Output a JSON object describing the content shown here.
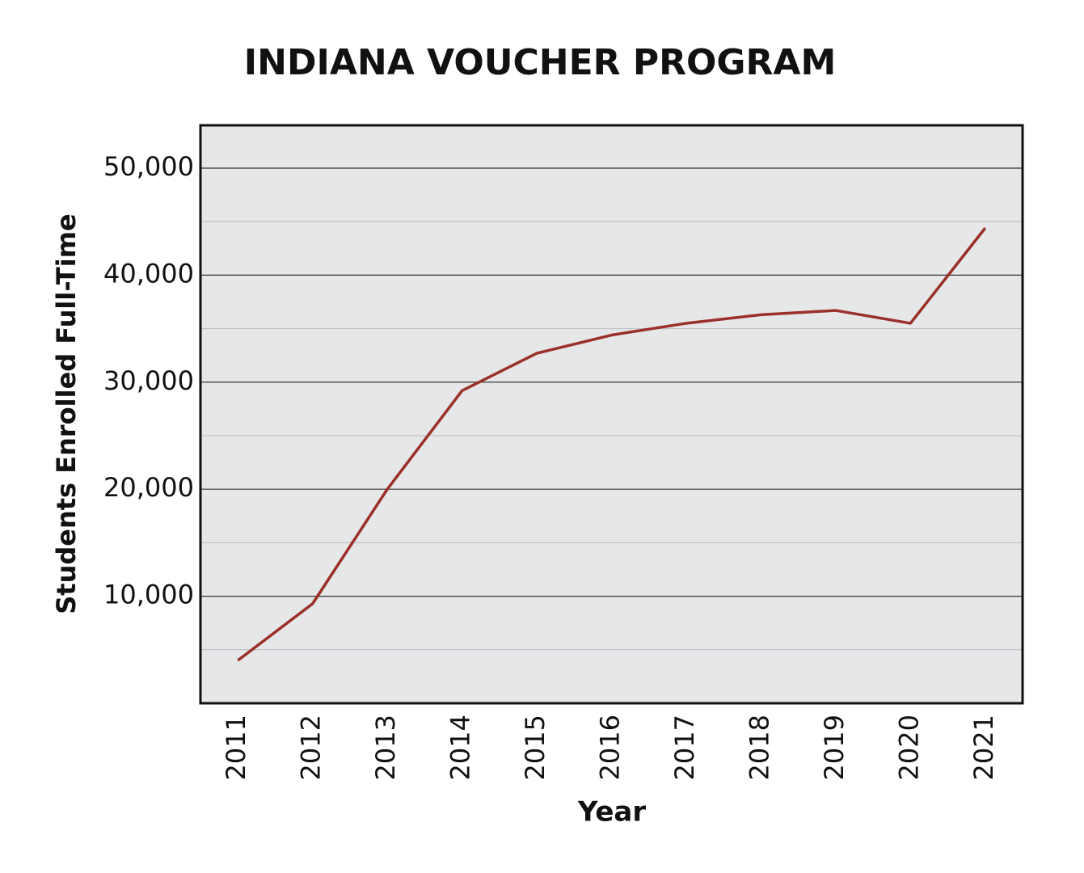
{
  "chart_data": {
    "type": "line",
    "title": "INDIANA VOUCHER PROGRAM",
    "x_label": "Year",
    "y_label": "Students Enrolled Full-Time",
    "categories": [
      "2011",
      "2012",
      "2013",
      "2014",
      "2015",
      "2016",
      "2017",
      "2018",
      "2019",
      "2020",
      "2021"
    ],
    "series": [
      {
        "name": "Students Enrolled Full-Time",
        "color": "#9b3028",
        "values": [
          4000,
          9300,
          20000,
          29200,
          32700,
          34400,
          35500,
          36300,
          36700,
          35500,
          44400
        ]
      }
    ],
    "ylim": [
      0,
      54000
    ],
    "yticks": [
      {
        "value": 10000,
        "label": "10,000"
      },
      {
        "value": 20000,
        "label": "20,000"
      },
      {
        "value": 30000,
        "label": "30,000"
      },
      {
        "value": 40000,
        "label": "40,000"
      },
      {
        "value": 50000,
        "label": "50,000"
      }
    ],
    "minor_yticks": [
      5000,
      15000,
      25000,
      35000,
      45000
    ],
    "grid": true
  }
}
